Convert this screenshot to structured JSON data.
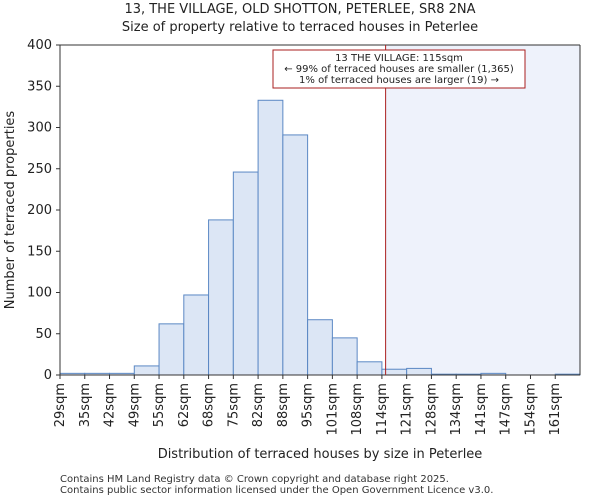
{
  "title_line1": "13, THE VILLAGE, OLD SHOTTON, PETERLEE, SR8 2NA",
  "title_line2": "Size of property relative to terraced houses in Peterlee",
  "footer_line1": "Contains HM Land Registry data © Crown copyright and database right 2025.",
  "footer_line2": "Contains public sector information licensed under the Open Government Licence v3.0.",
  "chart_data": {
    "type": "bar",
    "xlabel": "Distribution of terraced houses by size in Peterlee",
    "ylabel": "Number of terraced properties",
    "ylim": [
      0,
      400
    ],
    "yticks": [
      0,
      50,
      100,
      150,
      200,
      250,
      300,
      350,
      400
    ],
    "categories": [
      "29sqm",
      "35sqm",
      "42sqm",
      "49sqm",
      "55sqm",
      "62sqm",
      "68sqm",
      "75sqm",
      "82sqm",
      "88sqm",
      "95sqm",
      "101sqm",
      "108sqm",
      "114sqm",
      "121sqm",
      "128sqm",
      "134sqm",
      "141sqm",
      "147sqm",
      "154sqm",
      "161sqm"
    ],
    "values": [
      2,
      2,
      2,
      11,
      62,
      97,
      188,
      246,
      333,
      291,
      67,
      45,
      16,
      7,
      8,
      1,
      1,
      2,
      0,
      0,
      1
    ],
    "marker": {
      "value_sqm": 115,
      "bin_position": 13.15,
      "label_line1": "13 THE VILLAGE: 115sqm",
      "label_line2": "← 99% of terraced houses are smaller (1,365)",
      "label_line3": "1% of terraced houses are larger (19) →"
    },
    "colors": {
      "bar_fill": "#dce6f5",
      "bar_stroke": "#5b88c4",
      "marker_line": "#aa1f1f",
      "highlight_fill": "#eef2fb"
    }
  }
}
